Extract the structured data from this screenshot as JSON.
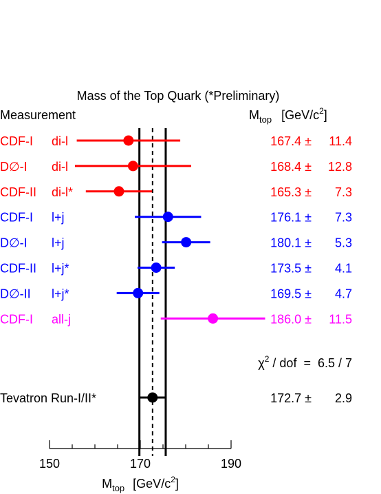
{
  "chart_data": {
    "type": "scatter",
    "title": "Mass of the Top Quark (*Preliminary)",
    "header": {
      "left": "Measurement",
      "right_symbol": "M",
      "right_sub": "top",
      "right_units": "[GeV/c",
      "right_units_sup": "2",
      "right_units_close": "]"
    },
    "xlabel": {
      "symbol": "M",
      "sub": "top",
      "units": "[GeV/c",
      "units_sup": "2",
      "units_close": "]"
    },
    "xlim": [
      150,
      190
    ],
    "xticks_major": [
      150,
      170,
      190
    ],
    "xticks_minor_step": 5,
    "combined_band": {
      "center": 172.7,
      "low": 169.8,
      "high": 175.6
    },
    "measurements": [
      {
        "experiment": "CDF-I",
        "channel": "di-l",
        "value": 167.4,
        "error": 11.4,
        "value_text": "167.4",
        "error_text": "11.4",
        "color": "#ff0000"
      },
      {
        "experiment": "D∅-I",
        "channel": "di-l",
        "value": 168.4,
        "error": 12.8,
        "value_text": "168.4",
        "error_text": "12.8",
        "color": "#ff0000"
      },
      {
        "experiment": "CDF-II",
        "channel": "di-l*",
        "value": 165.3,
        "error": 7.3,
        "value_text": "165.3",
        "error_text": "7.3",
        "color": "#ff0000"
      },
      {
        "experiment": "CDF-I",
        "channel": "l+j",
        "value": 176.1,
        "error": 7.3,
        "value_text": "176.1",
        "error_text": "7.3",
        "color": "#0000ff"
      },
      {
        "experiment": "D∅-I",
        "channel": "l+j",
        "value": 180.1,
        "error": 5.3,
        "value_text": "180.1",
        "error_text": "5.3",
        "color": "#0000ff"
      },
      {
        "experiment": "CDF-II",
        "channel": "l+j*",
        "value": 173.5,
        "error": 4.1,
        "value_text": "173.5",
        "error_text": "4.1",
        "color": "#0000ff"
      },
      {
        "experiment": "D∅-II",
        "channel": "l+j*",
        "value": 169.5,
        "error": 4.7,
        "value_text": "169.5",
        "error_text": "4.7",
        "color": "#0000ff"
      },
      {
        "experiment": "CDF-I",
        "channel": "all-j",
        "value": 186.0,
        "error": 11.5,
        "value_text": "186.0",
        "error_text": "11.5",
        "color": "#ff00ff"
      }
    ],
    "chi2": {
      "symbol": "χ",
      "sup": "2",
      "text": " / dof  =  6.5 / 7"
    },
    "combined": {
      "label": "Tevatron Run-I/II*",
      "value": 172.7,
      "error": 2.9,
      "value_text": "172.7",
      "error_text": "2.9",
      "color": "#000000"
    },
    "pm_symbol": "±"
  }
}
